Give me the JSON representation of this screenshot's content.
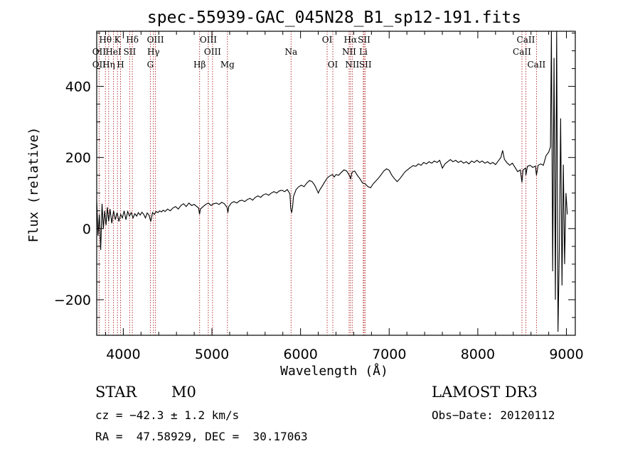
{
  "chart_data": {
    "type": "line",
    "title": "spec-55939-GAC_045N28_B1_sp12-191.fits",
    "xlabel": "Wavelength (Å)",
    "ylabel": "Flux (relative)",
    "xlim": [
      3700,
      9100
    ],
    "ylim": [
      -300,
      555
    ],
    "xticks": [
      4000,
      5000,
      6000,
      7000,
      8000,
      9000
    ],
    "xtick_labels": [
      "4000",
      "5000",
      "6000",
      "7000",
      "8000",
      "9000"
    ],
    "yticks": [
      -200,
      0,
      200,
      400
    ],
    "ytick_labels": [
      "−200",
      "0",
      "200",
      "400"
    ],
    "series": [
      {
        "name": "flux",
        "points": [
          [
            3700,
            80
          ],
          [
            3715,
            -20
          ],
          [
            3730,
            40
          ],
          [
            3745,
            -60
          ],
          [
            3760,
            70
          ],
          [
            3775,
            0
          ],
          [
            3790,
            50
          ],
          [
            3805,
            10
          ],
          [
            3820,
            60
          ],
          [
            3835,
            20
          ],
          [
            3850,
            55
          ],
          [
            3870,
            15
          ],
          [
            3890,
            50
          ],
          [
            3910,
            25
          ],
          [
            3930,
            45
          ],
          [
            3950,
            20
          ],
          [
            3970,
            40
          ],
          [
            3990,
            30
          ],
          [
            4010,
            50
          ],
          [
            4030,
            25
          ],
          [
            4050,
            48
          ],
          [
            4070,
            35
          ],
          [
            4090,
            45
          ],
          [
            4110,
            30
          ],
          [
            4130,
            42
          ],
          [
            4150,
            35
          ],
          [
            4170,
            45
          ],
          [
            4190,
            38
          ],
          [
            4210,
            46
          ],
          [
            4230,
            40
          ],
          [
            4250,
            30
          ],
          [
            4270,
            44
          ],
          [
            4290,
            38
          ],
          [
            4310,
            20
          ],
          [
            4330,
            45
          ],
          [
            4350,
            40
          ],
          [
            4370,
            48
          ],
          [
            4390,
            45
          ],
          [
            4410,
            50
          ],
          [
            4430,
            47
          ],
          [
            4450,
            52
          ],
          [
            4470,
            48
          ],
          [
            4500,
            55
          ],
          [
            4530,
            50
          ],
          [
            4560,
            58
          ],
          [
            4590,
            62
          ],
          [
            4620,
            55
          ],
          [
            4650,
            65
          ],
          [
            4680,
            70
          ],
          [
            4710,
            62
          ],
          [
            4740,
            72
          ],
          [
            4770,
            65
          ],
          [
            4800,
            68
          ],
          [
            4830,
            62
          ],
          [
            4850,
            58
          ],
          [
            4860,
            40
          ],
          [
            4870,
            55
          ],
          [
            4900,
            62
          ],
          [
            4930,
            68
          ],
          [
            4960,
            72
          ],
          [
            4990,
            65
          ],
          [
            5020,
            70
          ],
          [
            5050,
            72
          ],
          [
            5080,
            68
          ],
          [
            5110,
            74
          ],
          [
            5140,
            70
          ],
          [
            5170,
            60
          ],
          [
            5180,
            45
          ],
          [
            5190,
            62
          ],
          [
            5220,
            72
          ],
          [
            5250,
            76
          ],
          [
            5280,
            72
          ],
          [
            5310,
            78
          ],
          [
            5340,
            80
          ],
          [
            5370,
            76
          ],
          [
            5400,
            82
          ],
          [
            5430,
            85
          ],
          [
            5460,
            80
          ],
          [
            5490,
            88
          ],
          [
            5520,
            92
          ],
          [
            5550,
            88
          ],
          [
            5580,
            95
          ],
          [
            5610,
            98
          ],
          [
            5640,
            94
          ],
          [
            5670,
            100
          ],
          [
            5700,
            104
          ],
          [
            5730,
            100
          ],
          [
            5760,
            106
          ],
          [
            5790,
            108
          ],
          [
            5820,
            104
          ],
          [
            5850,
            110
          ],
          [
            5880,
            98
          ],
          [
            5890,
            55
          ],
          [
            5900,
            45
          ],
          [
            5910,
            60
          ],
          [
            5920,
            90
          ],
          [
            5950,
            110
          ],
          [
            5980,
            118
          ],
          [
            6010,
            122
          ],
          [
            6040,
            118
          ],
          [
            6070,
            128
          ],
          [
            6100,
            135
          ],
          [
            6130,
            132
          ],
          [
            6160,
            122
          ],
          [
            6190,
            106
          ],
          [
            6200,
            100
          ],
          [
            6215,
            108
          ],
          [
            6240,
            118
          ],
          [
            6270,
            130
          ],
          [
            6300,
            142
          ],
          [
            6330,
            148
          ],
          [
            6360,
            152
          ],
          [
            6380,
            145
          ],
          [
            6400,
            152
          ],
          [
            6430,
            150
          ],
          [
            6460,
            158
          ],
          [
            6490,
            165
          ],
          [
            6520,
            162
          ],
          [
            6550,
            150
          ],
          [
            6565,
            140
          ],
          [
            6580,
            158
          ],
          [
            6610,
            162
          ],
          [
            6640,
            150
          ],
          [
            6670,
            140
          ],
          [
            6700,
            128
          ],
          [
            6730,
            126
          ],
          [
            6760,
            118
          ],
          [
            6790,
            115
          ],
          [
            6820,
            126
          ],
          [
            6850,
            134
          ],
          [
            6880,
            142
          ],
          [
            6910,
            152
          ],
          [
            6940,
            162
          ],
          [
            6970,
            168
          ],
          [
            7000,
            164
          ],
          [
            7030,
            150
          ],
          [
            7060,
            140
          ],
          [
            7090,
            132
          ],
          [
            7120,
            140
          ],
          [
            7150,
            150
          ],
          [
            7180,
            160
          ],
          [
            7210,
            166
          ],
          [
            7240,
            172
          ],
          [
            7270,
            177
          ],
          [
            7300,
            175
          ],
          [
            7330,
            182
          ],
          [
            7360,
            178
          ],
          [
            7390,
            186
          ],
          [
            7420,
            182
          ],
          [
            7450,
            188
          ],
          [
            7480,
            184
          ],
          [
            7510,
            190
          ],
          [
            7540,
            186
          ],
          [
            7570,
            192
          ],
          [
            7600,
            170
          ],
          [
            7630,
            182
          ],
          [
            7660,
            188
          ],
          [
            7690,
            194
          ],
          [
            7720,
            188
          ],
          [
            7750,
            192
          ],
          [
            7780,
            186
          ],
          [
            7810,
            190
          ],
          [
            7840,
            184
          ],
          [
            7870,
            188
          ],
          [
            7900,
            182
          ],
          [
            7930,
            190
          ],
          [
            7960,
            186
          ],
          [
            7990,
            192
          ],
          [
            8020,
            186
          ],
          [
            8050,
            190
          ],
          [
            8080,
            184
          ],
          [
            8110,
            188
          ],
          [
            8140,
            182
          ],
          [
            8170,
            186
          ],
          [
            8200,
            180
          ],
          [
            8230,
            190
          ],
          [
            8260,
            200
          ],
          [
            8280,
            220
          ],
          [
            8300,
            195
          ],
          [
            8330,
            185
          ],
          [
            8360,
            178
          ],
          [
            8390,
            184
          ],
          [
            8420,
            172
          ],
          [
            8450,
            160
          ],
          [
            8480,
            165
          ],
          [
            8498,
            130
          ],
          [
            8510,
            165
          ],
          [
            8540,
            170
          ],
          [
            8542,
            150
          ],
          [
            8560,
            175
          ],
          [
            8590,
            178
          ],
          [
            8620,
            172
          ],
          [
            8650,
            176
          ],
          [
            8662,
            150
          ],
          [
            8680,
            178
          ],
          [
            8710,
            182
          ],
          [
            8740,
            178
          ],
          [
            8770,
            205
          ],
          [
            8800,
            215
          ],
          [
            8820,
            230
          ],
          [
            8830,
            555
          ],
          [
            8845,
            -120
          ],
          [
            8860,
            480
          ],
          [
            8875,
            -200
          ],
          [
            8890,
            555
          ],
          [
            8905,
            -290
          ],
          [
            8920,
            -50
          ],
          [
            8935,
            310
          ],
          [
            8950,
            -160
          ],
          [
            8965,
            180
          ],
          [
            8980,
            -100
          ],
          [
            8995,
            100
          ],
          [
            9010,
            40
          ]
        ]
      }
    ],
    "spectral_lines": [
      {
        "label": "Hθ",
        "wavelength": 3798,
        "row": 0
      },
      {
        "label": "K",
        "wavelength": 3934,
        "row": 0
      },
      {
        "label": "Hδ",
        "wavelength": 4102,
        "row": 0
      },
      {
        "label": "OIII",
        "wavelength": 4363,
        "row": 0
      },
      {
        "label": "OIII",
        "wavelength": 4959,
        "row": 0
      },
      {
        "label": "OI",
        "wavelength": 6300,
        "row": 0
      },
      {
        "label": "Hα",
        "wavelength": 6563,
        "row": 0
      },
      {
        "label": "SII",
        "wavelength": 6717,
        "row": 0
      },
      {
        "label": "CaII",
        "wavelength": 8542,
        "row": 0
      },
      {
        "label": "OII",
        "wavelength": 3727,
        "row": 1
      },
      {
        "label": "HeI",
        "wavelength": 3889,
        "row": 1
      },
      {
        "label": "SII",
        "wavelength": 4072,
        "row": 1
      },
      {
        "label": "Hγ",
        "wavelength": 4340,
        "row": 1
      },
      {
        "label": "OIII",
        "wavelength": 5007,
        "row": 1
      },
      {
        "label": "Na",
        "wavelength": 5893,
        "row": 1
      },
      {
        "label": "NII",
        "wavelength": 6548,
        "row": 1
      },
      {
        "label": "Li",
        "wavelength": 6708,
        "row": 1
      },
      {
        "label": "CaII",
        "wavelength": 8498,
        "row": 1
      },
      {
        "label": "OII",
        "wavelength": 3727,
        "row": 2
      },
      {
        "label": "Hη",
        "wavelength": 3835,
        "row": 2
      },
      {
        "label": "H",
        "wavelength": 3969,
        "row": 2
      },
      {
        "label": "G",
        "wavelength": 4305,
        "row": 2
      },
      {
        "label": "Hβ",
        "wavelength": 4861,
        "row": 2
      },
      {
        "label": "Mg",
        "wavelength": 5175,
        "row": 2
      },
      {
        "label": "OI",
        "wavelength": 6364,
        "row": 2
      },
      {
        "label": "NII",
        "wavelength": 6583,
        "row": 2
      },
      {
        "label": "SII",
        "wavelength": 6731,
        "row": 2
      },
      {
        "label": "CaII",
        "wavelength": 8662,
        "row": 2
      }
    ]
  },
  "info": {
    "object_class": "STAR",
    "subclass": "M0",
    "survey": "LAMOST DR3",
    "cz": "cz = −42.3 ± 1.2 km/s",
    "obs_date": "Obs−Date: 20120112",
    "coords": "RA =  47.58929, DEC =  30.17063"
  },
  "colors": {
    "spectrum": "#000000",
    "line_marker": "#b22222",
    "axis": "#000000"
  }
}
